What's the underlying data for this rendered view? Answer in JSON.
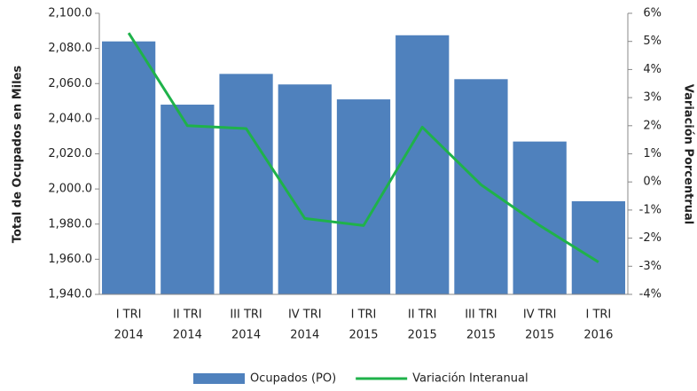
{
  "chart_data": {
    "type": "bar_line",
    "y_label": "Total de Ocupados en Miles",
    "y2_label": "Variación Porcentrual",
    "categories": [
      [
        "I TRI",
        "2014"
      ],
      [
        "II TRI",
        "2014"
      ],
      [
        "III TRI",
        "2014"
      ],
      [
        "IV TRI",
        "2014"
      ],
      [
        "I TRI",
        "2015"
      ],
      [
        "II TRI",
        "2015"
      ],
      [
        "III TRI",
        "2015"
      ],
      [
        "IV TRI",
        "2015"
      ],
      [
        "I TRI",
        "2016"
      ]
    ],
    "series": [
      {
        "name": "Ocupados (PO)",
        "type": "bar",
        "color": "#4f81bd",
        "values": [
          2084,
          2048,
          2065.5,
          2059.5,
          2051,
          2087.5,
          2062.5,
          2027,
          1993
        ]
      },
      {
        "name": "Variación Interanual",
        "type": "line",
        "axis": "y2",
        "color": "#1fb24a",
        "values": [
          5.3,
          2.0,
          1.9,
          -1.3,
          -1.55,
          1.95,
          -0.1,
          -1.55,
          -2.85
        ]
      }
    ],
    "ylim": [
      1940,
      2100
    ],
    "yticks": [
      {
        "value": 1940,
        "label": "1,940.0"
      },
      {
        "value": 1960,
        "label": "1,960.0"
      },
      {
        "value": 1980,
        "label": "1,980.0"
      },
      {
        "value": 2000,
        "label": "2,000.0"
      },
      {
        "value": 2020,
        "label": "2,020.0"
      },
      {
        "value": 2040,
        "label": "2,040.0"
      },
      {
        "value": 2060,
        "label": "2,060.0"
      },
      {
        "value": 2080,
        "label": "2,080.0"
      },
      {
        "value": 2100,
        "label": "2,100.0"
      }
    ],
    "y2lim": [
      -4,
      6
    ],
    "y2ticks": [
      {
        "value": -4,
        "label": "-4%"
      },
      {
        "value": -3,
        "label": "-3%"
      },
      {
        "value": -2,
        "label": "-2%"
      },
      {
        "value": -1,
        "label": "-1%"
      },
      {
        "value": 0,
        "label": "0%"
      },
      {
        "value": 1,
        "label": "1%"
      },
      {
        "value": 2,
        "label": "2%"
      },
      {
        "value": 3,
        "label": "3%"
      },
      {
        "value": 4,
        "label": "4%"
      },
      {
        "value": 5,
        "label": "5%"
      },
      {
        "value": 6,
        "label": "6%"
      }
    ],
    "legend": "bottom"
  }
}
